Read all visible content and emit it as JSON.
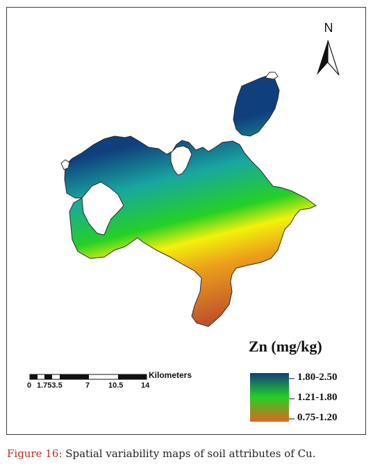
{
  "figure": {
    "north_label": "N",
    "legend_title": "Zn (mg/kg)",
    "legend_classes": [
      {
        "label": "1.80-2.50",
        "color": "#0f3f7d"
      },
      {
        "label": "1.21-1.80",
        "color": "#25d025"
      },
      {
        "label": "0.75-1.20",
        "color": "#e0651e"
      }
    ],
    "scale_bar": {
      "unit": "Kilometers",
      "ticks": [
        "0",
        "1.753.5",
        "7",
        "10.5",
        "14"
      ]
    },
    "colors": {
      "high": "#0f3f7d",
      "mid_high": "#18a7a0",
      "mid": "#25d025",
      "mid_low": "#f2f20a",
      "low_mid": "#eba01b",
      "low": "#c0532a"
    }
  },
  "caption": {
    "label": "Figure 16:",
    "text": " Spatial variability maps of soil attributes of Cu."
  }
}
